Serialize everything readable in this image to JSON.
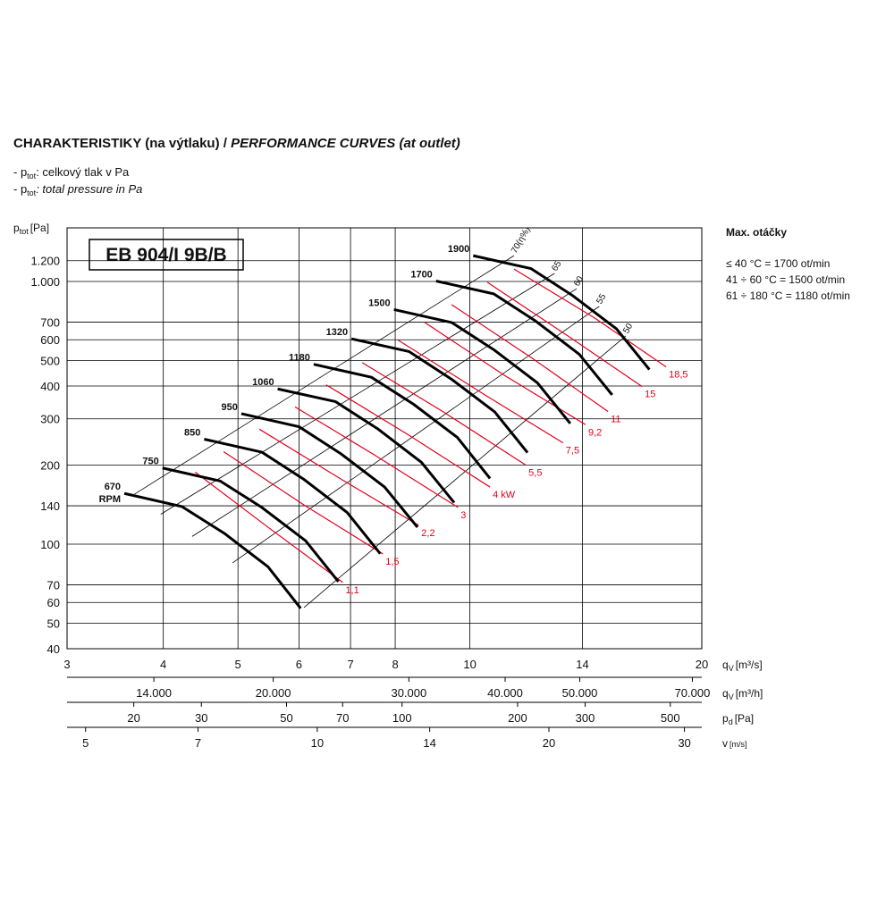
{
  "chart_data": {
    "type": "line",
    "title": "CHARAKTERISTIKY (na výtlaku) /",
    "title_italic": "PERFORMANCE CURVES (at outlet)",
    "notes": [
      {
        "prefix": "- p",
        "sub": "tot",
        "text": ": celkový tlak v Pa"
      },
      {
        "prefix": "- p",
        "sub": "tot",
        "text": ": total pressure in Pa"
      }
    ],
    "model": "EB 904/I 9B/B",
    "side_note": {
      "title": "Max. otáčky",
      "lines": [
        "≤ 40 °C = 1700 ot/min",
        "41 ÷ 60 °C = 1500 ot/min",
        "61 ÷ 180 °C = 1180 ot/min"
      ]
    },
    "y_label": {
      "main": "p",
      "sub": "tot",
      "unit": "[Pa]"
    },
    "x_label": {
      "main": "q",
      "sub": "V",
      "unit": "[m³/s]"
    },
    "log_x": true,
    "log_y": true,
    "grid": true,
    "xlim": [
      3,
      20
    ],
    "xticks": [
      3,
      4,
      5,
      6,
      7,
      8,
      10,
      14,
      20
    ],
    "ylim": [
      40,
      1600
    ],
    "yticks": [
      40,
      50,
      60,
      70,
      100,
      140,
      200,
      300,
      400,
      500,
      600,
      700,
      {
        "value": 1000,
        "label": "1.000"
      },
      {
        "value": 1200,
        "label": "1.200"
      }
    ],
    "rpm_unit": "RPM",
    "series": [
      {
        "name": "670",
        "color": "#000000",
        "x": [
          3.56,
          4.23,
          4.8,
          5.47,
          6.03
        ],
        "values": [
          156,
          139,
          110,
          82,
          57
        ]
      },
      {
        "name": "750",
        "color": "#000000",
        "x": [
          3.99,
          4.74,
          5.37,
          6.12,
          6.75
        ],
        "values": [
          195,
          174,
          138,
          103,
          72
        ]
      },
      {
        "name": "850",
        "color": "#000000",
        "x": [
          4.52,
          5.37,
          6.08,
          6.93,
          7.65
        ],
        "values": [
          251,
          224,
          177,
          132,
          92
        ]
      },
      {
        "name": "950",
        "color": "#000000",
        "x": [
          5.05,
          6.0,
          6.8,
          7.75,
          8.55
        ],
        "values": [
          314,
          280,
          221,
          165,
          116
        ]
      },
      {
        "name": "1060",
        "color": "#000000",
        "x": [
          5.63,
          6.69,
          7.59,
          8.65,
          9.54
        ],
        "values": [
          390,
          349,
          275,
          205,
          144
        ]
      },
      {
        "name": "1180",
        "color": "#000000",
        "x": [
          6.27,
          7.45,
          8.45,
          9.63,
          10.62
        ],
        "values": [
          484,
          432,
          341,
          255,
          178
        ]
      },
      {
        "name": "1320",
        "color": "#000000",
        "x": [
          7.02,
          8.34,
          9.45,
          10.77,
          11.88
        ],
        "values": [
          605,
          541,
          426,
          319,
          223
        ]
      },
      {
        "name": "1500",
        "color": "#000000",
        "x": [
          7.97,
          9.47,
          10.74,
          12.24,
          13.5
        ],
        "values": [
          782,
          698,
          550,
          411,
          288
        ]
      },
      {
        "name": "1700",
        "color": "#000000",
        "x": [
          9.04,
          10.74,
          12.17,
          13.87,
          15.3
        ],
        "values": [
          1004,
          897,
          707,
          528,
          370
        ]
      },
      {
        "name": "1900",
        "color": "#000000",
        "x": [
          10.1,
          12.0,
          13.6,
          15.5,
          17.1
        ],
        "values": [
          1254,
          1120,
          883,
          660,
          462
        ]
      }
    ],
    "power_curves": [
      {
        "name": "1,1",
        "color": "#e3001b",
        "x": [
          4.4,
          5.47,
          6.84
        ],
        "values": [
          188,
          116,
          71.5
        ]
      },
      {
        "name": "1,5",
        "color": "#e3001b",
        "x": [
          4.79,
          6.09,
          7.71
        ],
        "values": [
          225,
          141,
          91.8
        ]
      },
      {
        "name": "2,2",
        "color": "#e3001b",
        "x": [
          5.33,
          6.78,
          8.58
        ],
        "values": [
          274,
          178,
          118
        ]
      },
      {
        "name": "3",
        "color": "#e3001b",
        "x": [
          5.93,
          7.55,
          9.65
        ],
        "values": [
          333,
          217,
          138
        ]
      },
      {
        "name": "4 kW",
        "color": "#e3001b",
        "x": [
          6.51,
          8.28,
          10.62
        ],
        "values": [
          404,
          263,
          165
        ]
      },
      {
        "name": "5,5",
        "color": "#e3001b",
        "x": [
          7.25,
          9.22,
          11.82
        ],
        "values": [
          491,
          320,
          200
        ]
      },
      {
        "name": "7,5",
        "color": "#e3001b",
        "x": [
          8.07,
          10.4,
          13.21
        ],
        "values": [
          598,
          374,
          243
        ]
      },
      {
        "name": "9,2",
        "color": "#e3001b",
        "x": [
          8.74,
          11.12,
          14.13
        ],
        "values": [
          698,
          437,
          285
        ]
      },
      {
        "name": "11",
        "color": "#e3001b",
        "x": [
          9.47,
          12.04,
          15.11
        ],
        "values": [
          816,
          511,
          320
        ]
      },
      {
        "name": "15",
        "color": "#e3001b",
        "x": [
          10.54,
          13.4,
          16.73
        ],
        "values": [
          992,
          621,
          398
        ]
      },
      {
        "name": "18,5",
        "color": "#e3001b",
        "x": [
          11.41,
          14.52,
          17.98
        ],
        "values": [
          1115,
          726,
          473
        ]
      }
    ],
    "efficiency_lines": [
      {
        "name": "70(η%)",
        "x": [
          3.67,
          11.41
        ],
        "values": [
          155,
          1254
        ]
      },
      {
        "name": "65",
        "x": [
          3.97,
          12.88
        ],
        "values": [
          130,
          1073
        ]
      },
      {
        "name": "60",
        "x": [
          4.36,
          13.76
        ],
        "values": [
          107,
          939
        ]
      },
      {
        "name": "55",
        "x": [
          4.92,
          14.72
        ],
        "values": [
          84.9,
          804
        ]
      },
      {
        "name": "50",
        "x": [
          6.09,
          15.94
        ],
        "values": [
          57.4,
          621
        ]
      }
    ],
    "secondary_axes": [
      {
        "label": {
          "main": "q",
          "sub": "V",
          "unit": "[m³/h]"
        },
        "xlim": [
          10800,
          72000
        ],
        "xticks": [
          {
            "value": 14000,
            "label": "14.000"
          },
          {
            "value": 20000,
            "label": "20.000"
          },
          {
            "value": 30000,
            "label": "30.000"
          },
          {
            "value": 40000,
            "label": "40.000"
          },
          {
            "value": 50000,
            "label": "50.000"
          },
          {
            "value": 70000,
            "label": "70.000"
          }
        ]
      },
      {
        "label": {
          "main": "p",
          "sub": "d",
          "unit": "[Pa]"
        },
        "xlim": [
          13.4,
          604
        ],
        "xticks": [
          20,
          30,
          50,
          70,
          100,
          200,
          300,
          500
        ]
      },
      {
        "label": {
          "main": "v",
          "sub": "",
          "unit": "[m/s]"
        },
        "xlim": [
          4.73,
          31.6
        ],
        "xticks": [
          5,
          7,
          10,
          14,
          20,
          30
        ]
      }
    ]
  }
}
